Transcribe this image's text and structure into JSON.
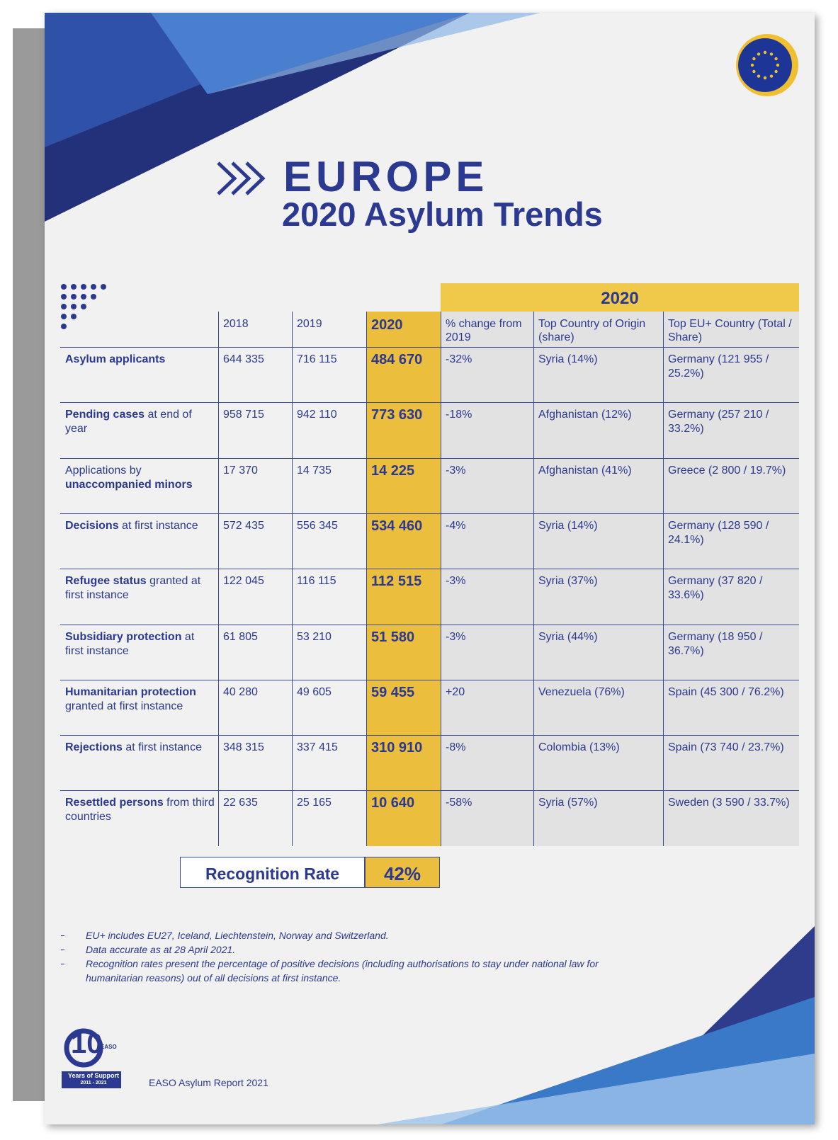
{
  "header": {
    "title": "EUROPE",
    "subtitle": "2020 Asylum Trends"
  },
  "table": {
    "group_header": "2020",
    "columns": [
      "2018",
      "2019",
      "2020",
      "% change from 2019",
      "Top Country of Origin (share)",
      "Top EU+ Country (Total / Share)"
    ],
    "rows": [
      {
        "label": [
          {
            "text": "Asylum applicants",
            "bold": true
          }
        ],
        "cells": [
          "644 335",
          "716 115",
          "484 670",
          "-32%",
          "Syria (14%)",
          "Germany (121 955 / 25.2%)"
        ]
      },
      {
        "label": [
          {
            "text": "Pending cases",
            "bold": true
          },
          {
            "text": "at end of year"
          }
        ],
        "cells": [
          "958 715",
          "942 110",
          "773 630",
          "-18%",
          "Afghanistan (12%)",
          "Germany (257 210 / 33.2%)"
        ]
      },
      {
        "label": [
          {
            "text": "Applications by"
          },
          {
            "text": "unaccompanied minors",
            "bold": true
          }
        ],
        "cells": [
          "17 370",
          "14 735",
          "14 225",
          "-3%",
          "Afghanistan (41%)",
          "Greece (2 800 / 19.7%)"
        ]
      },
      {
        "label": [
          {
            "text": "Decisions",
            "bold": true
          },
          {
            "text": "at first instance"
          }
        ],
        "cells": [
          "572 435",
          "556 345",
          "534 460",
          "-4%",
          "Syria (14%)",
          "Germany (128 590 / 24.1%)"
        ]
      },
      {
        "label": [
          {
            "text": "Refugee status",
            "bold": true
          },
          {
            "text": "granted at first instance"
          }
        ],
        "cells": [
          "122 045",
          "116 115",
          "112 515",
          "-3%",
          "Syria (37%)",
          "Germany (37 820 / 33.6%)"
        ]
      },
      {
        "label": [
          {
            "text": "Subsidiary protection",
            "bold": true
          },
          {
            "text": "at first instance"
          }
        ],
        "cells": [
          "61 805",
          "53 210",
          "51 580",
          "-3%",
          "Syria (44%)",
          "Germany (18 950 / 36.7%)"
        ]
      },
      {
        "label": [
          {
            "text": "Humanitarian protection",
            "bold": true
          },
          {
            "text": "granted at first instance"
          }
        ],
        "cells": [
          "40 280",
          "49 605",
          "59 455",
          "+20",
          "Venezuela (76%)",
          "Spain (45 300 / 76.2%)"
        ]
      },
      {
        "label": [
          {
            "text": "Rejections",
            "bold": true
          },
          {
            "text": "at first instance"
          }
        ],
        "cells": [
          "348 315",
          "337 415",
          "310 910",
          "-8%",
          "Colombia (13%)",
          "Spain (73 740 / 23.7%)"
        ]
      },
      {
        "label": [
          {
            "text": "Resettled persons",
            "bold": true
          },
          {
            "text": "from third countries"
          }
        ],
        "cells": [
          "22 635",
          "25 165",
          "10 640",
          "-58%",
          "Syria (57%)",
          "Sweden (3 590 / 33.7%)"
        ]
      }
    ]
  },
  "recognition": {
    "label": "Recognition Rate",
    "value": "42%"
  },
  "footnotes": [
    "EU+ includes EU27, Iceland, Liechtenstein, Norway and Switzerland.",
    "Data accurate as at 28 April 2021.",
    "Recognition rates present the percentage of positive decisions (including authorisations to stay under national law for humanitarian reasons) out of all decisions at first instance."
  ],
  "footer": "EASO Asylum Report 2021",
  "logo": {
    "number": "10",
    "agency": "EASO",
    "caption": "Years of Support",
    "years": "2011 - 2021"
  }
}
